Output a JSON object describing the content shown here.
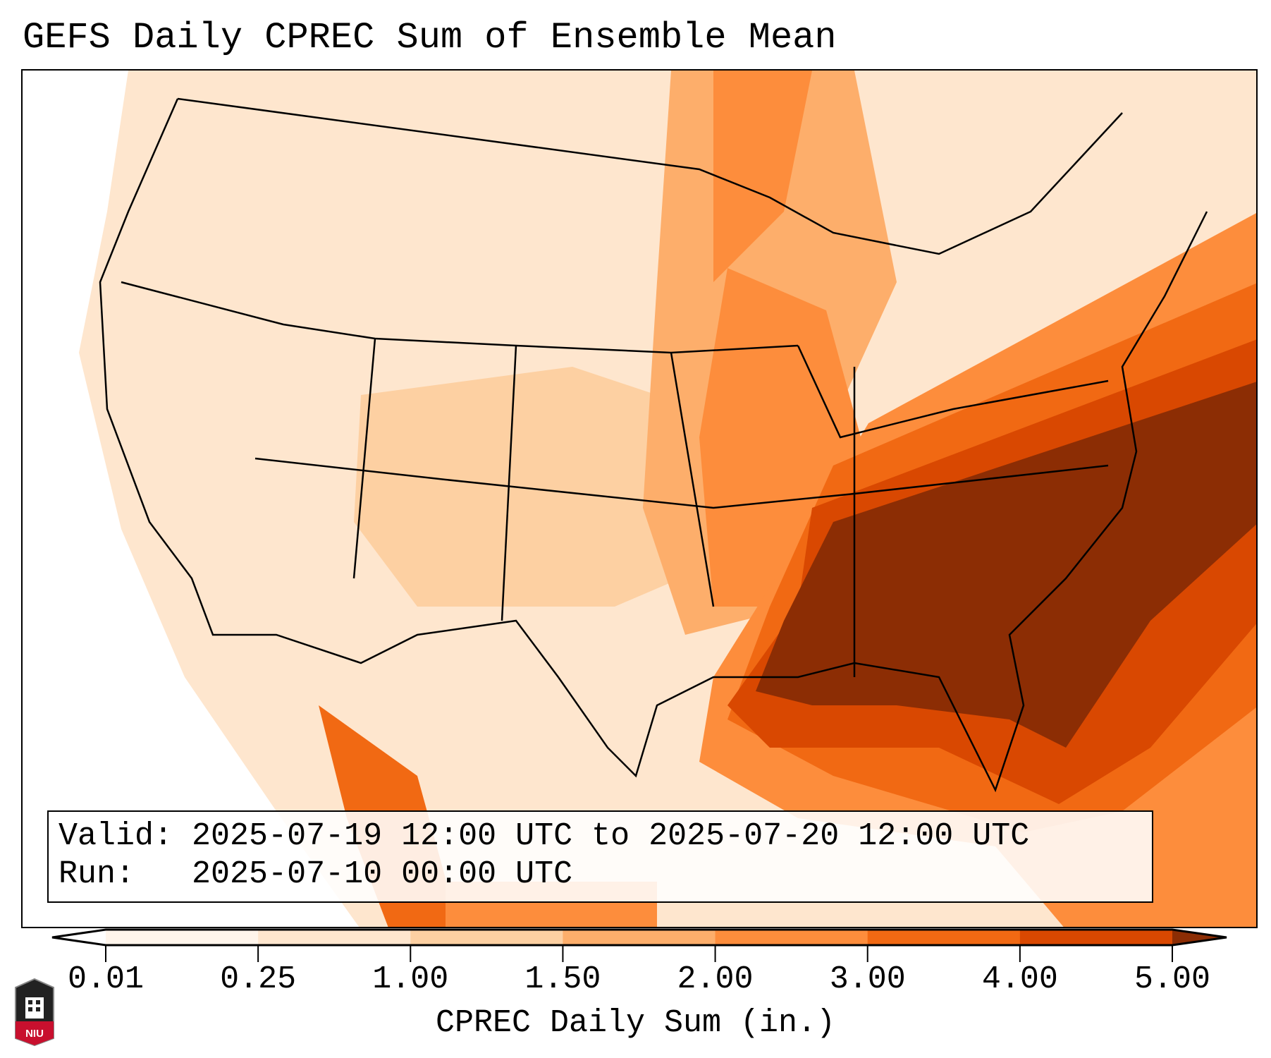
{
  "title": "GEFS Daily CPREC Sum of Ensemble Mean",
  "info": {
    "valid_label": "Valid:",
    "valid_value": "2025-07-19 12:00 UTC to 2025-07-20 12:00 UTC",
    "run_label": "Run:",
    "run_value": "2025-07-10 00:00 UTC"
  },
  "colorbar": {
    "label": "CPREC Daily Sum (in.)",
    "ticks": [
      "0.01",
      "0.25",
      "1.00",
      "1.50",
      "2.00",
      "3.00",
      "4.00",
      "5.00"
    ],
    "colors": [
      "#fff5eb",
      "#fee6ce",
      "#fdd0a2",
      "#fdae6b",
      "#fd8d3c",
      "#f16913",
      "#d94801",
      "#8c2d04"
    ]
  },
  "logo": {
    "text": "NIU"
  }
}
